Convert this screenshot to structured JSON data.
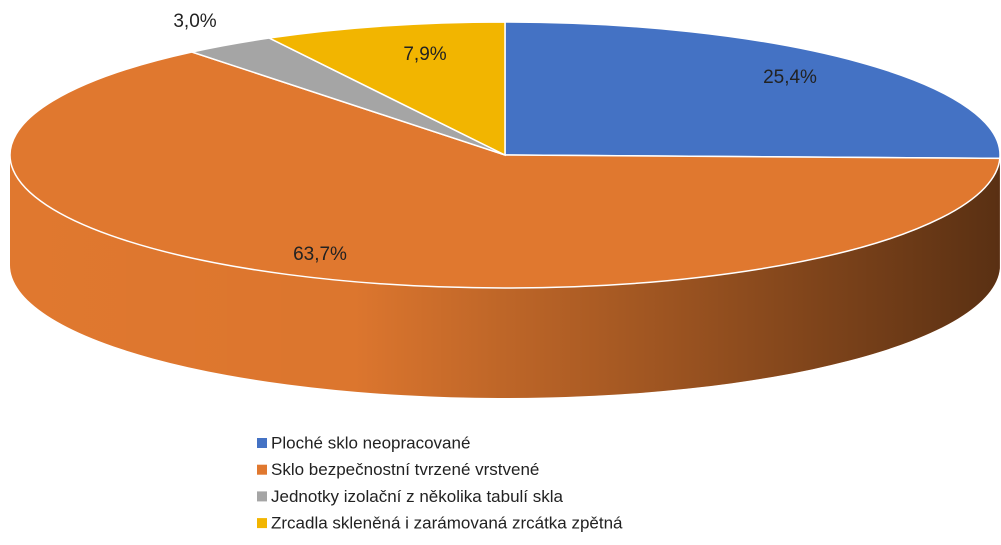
{
  "chart_data": {
    "type": "pie3d",
    "categories": [
      "Ploché sklo neopracované",
      "Sklo bezpečnostní tvrzené vrstvené",
      "Jednotky izolační z několika tabulí skla",
      "Zrcadla skleněná i zarámovaná zrcátka zpětná"
    ],
    "values": [
      25.4,
      63.7,
      3.0,
      7.9
    ],
    "value_labels": [
      "25,4%",
      "63,7%",
      "3,0%",
      "7,9%"
    ],
    "colors": [
      "#4472c4",
      "#e0782f",
      "#a5a5a5",
      "#f2b500"
    ],
    "legend": "bottom"
  }
}
